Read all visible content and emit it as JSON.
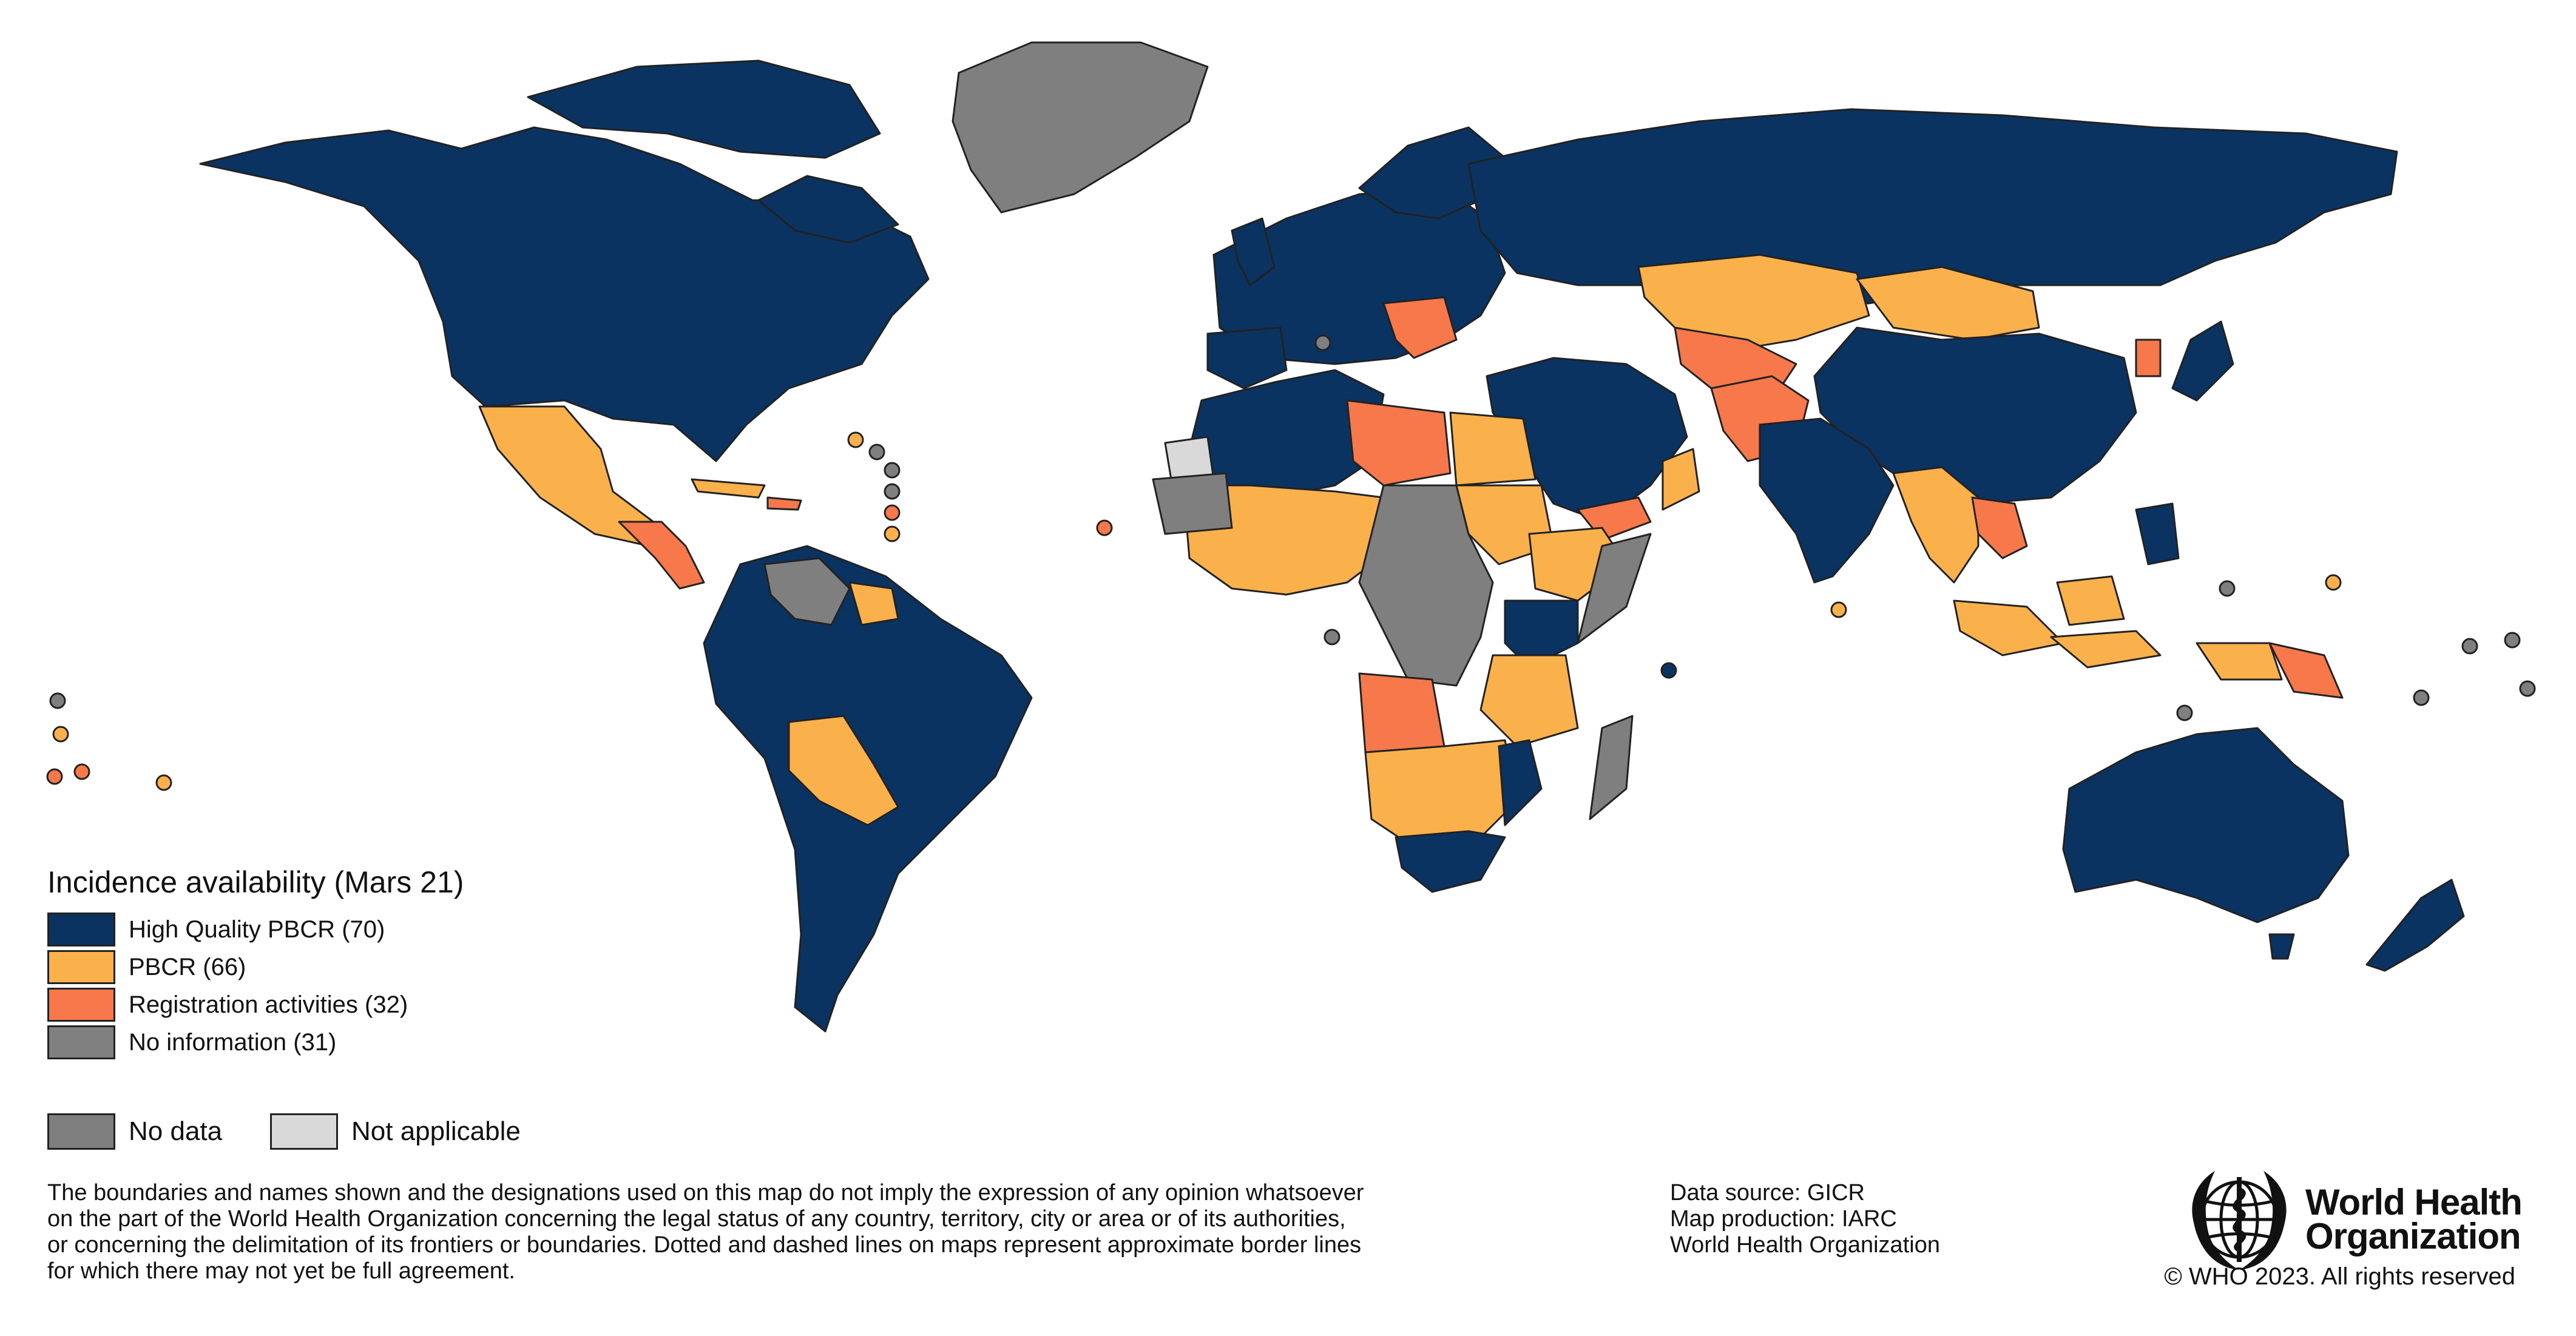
{
  "colors": {
    "high_quality": "#0a3361",
    "pbcr": "#fbb14b",
    "registration": "#f7784a",
    "no_information": "#808080",
    "no_data": "#7f7f7f",
    "not_applicable": "#d9d9d9",
    "ocean": "#ffffff",
    "border": "#222222"
  },
  "legend": {
    "title": "Incidence availability (Mars 21)",
    "items": [
      {
        "label": "High Quality PBCR (70)",
        "color_key": "high_quality"
      },
      {
        "label": "PBCR (66)",
        "color_key": "pbcr"
      },
      {
        "label": "Registration activities (32)",
        "color_key": "registration"
      },
      {
        "label": "No information (31)",
        "color_key": "no_information"
      }
    ]
  },
  "extra_legend": {
    "no_data": "No data",
    "not_applicable": "Not applicable"
  },
  "disclaimer": {
    "line1": "The boundaries and names shown and the designations used on this map do not imply the expression of any opinion whatsoever",
    "line2": "on the part of the World Health Organization concerning the legal status of any country, territory, city or area or of its authorities,",
    "line3": "or concerning the delimitation of its frontiers or boundaries. Dotted and dashed lines on maps represent approximate border lines",
    "line4": "for which there may not yet be full agreement."
  },
  "source": {
    "line1": "Data source: GICR",
    "line2": "Map production: IARC",
    "line3": "World Health Organization"
  },
  "who": {
    "name_line1": "World Health",
    "name_line2": "Organization",
    "copyright": "© WHO 2023. All rights reserved"
  }
}
